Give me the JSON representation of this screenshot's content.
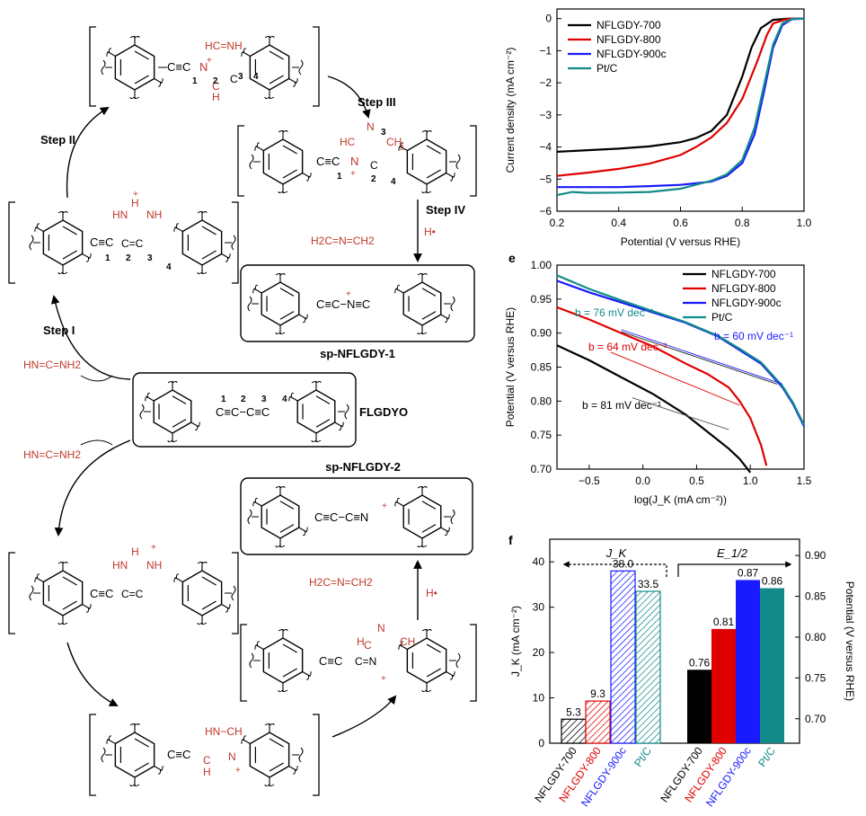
{
  "scheme": {
    "steps": [
      "Step I",
      "Step II",
      "Step III",
      "Step IV"
    ],
    "center_label": "FLGDYO",
    "product1_label": "sp-NFLGDY-1",
    "product2_label": "sp-NFLGDY-2",
    "reagent": "HN=C=NH2",
    "byproduct": "H2C=N=CH2",
    "h_radical": "H•",
    "ring_labels": [
      "HC=NH",
      "HN",
      "NH",
      "C=H",
      "N",
      "C",
      "CH2",
      "H"
    ],
    "numbers": [
      "1",
      "2",
      "3",
      "4"
    ]
  },
  "chart_data": [
    {
      "type": "line",
      "xlabel": "Potential (V versus RHE)",
      "ylabel": "Current density (mA cm⁻²)",
      "xlim": [
        0.2,
        1.0
      ],
      "ylim": [
        -6,
        0.3
      ],
      "xticks": [
        "0.2",
        "0.4",
        "0.6",
        "0.8",
        "1.0"
      ],
      "yticks": [
        "0",
        "−1",
        "−2",
        "−3",
        "−4",
        "−5",
        "−6"
      ],
      "legend_position": "top-left",
      "series": [
        {
          "name": "NFLGDY-700",
          "color": "#000000",
          "x": [
            0.2,
            0.3,
            0.4,
            0.5,
            0.6,
            0.65,
            0.7,
            0.75,
            0.8,
            0.83,
            0.86,
            0.9,
            0.95,
            1.0
          ],
          "y": [
            -4.15,
            -4.1,
            -4.05,
            -3.98,
            -3.85,
            -3.72,
            -3.5,
            -3.0,
            -1.8,
            -0.9,
            -0.3,
            -0.04,
            0,
            0
          ]
        },
        {
          "name": "NFLGDY-800",
          "color": "#e00000",
          "x": [
            0.2,
            0.3,
            0.4,
            0.5,
            0.6,
            0.65,
            0.7,
            0.75,
            0.8,
            0.85,
            0.88,
            0.9,
            0.95,
            1.0
          ],
          "y": [
            -4.9,
            -4.8,
            -4.68,
            -4.52,
            -4.25,
            -4.0,
            -3.7,
            -3.25,
            -2.5,
            -1.3,
            -0.5,
            -0.15,
            0,
            0
          ]
        },
        {
          "name": "NFLGDY-900c",
          "color": "#1a1aff",
          "x": [
            0.2,
            0.3,
            0.4,
            0.5,
            0.6,
            0.7,
            0.75,
            0.8,
            0.84,
            0.87,
            0.9,
            0.93,
            0.96,
            1.0
          ],
          "y": [
            -5.25,
            -5.25,
            -5.25,
            -5.22,
            -5.18,
            -5.08,
            -4.9,
            -4.5,
            -3.6,
            -2.3,
            -0.9,
            -0.2,
            -0.02,
            0
          ]
        },
        {
          "name": "Pt/C",
          "color": "#138a8a",
          "x": [
            0.2,
            0.25,
            0.3,
            0.4,
            0.5,
            0.6,
            0.7,
            0.75,
            0.8,
            0.84,
            0.87,
            0.9,
            0.93,
            0.96,
            1.0
          ],
          "y": [
            -5.5,
            -5.4,
            -5.43,
            -5.42,
            -5.4,
            -5.3,
            -5.05,
            -4.85,
            -4.4,
            -3.4,
            -2.1,
            -0.8,
            -0.15,
            -0.01,
            0
          ]
        }
      ]
    },
    {
      "type": "line",
      "panel_label": "e",
      "xlabel": "log(J_K (mA cm⁻²))",
      "ylabel": "Potential (V versus RHE)",
      "xlim": [
        -0.8,
        1.5
      ],
      "ylim": [
        0.7,
        1.0
      ],
      "xticks": [
        "−0.5",
        "0.0",
        "0.5",
        "1.0",
        "1.5"
      ],
      "yticks": [
        "0.70",
        "0.75",
        "0.80",
        "0.85",
        "0.90",
        "0.95",
        "1.00"
      ],
      "legend_position": "top-right",
      "series": [
        {
          "name": "NFLGDY-700",
          "color": "#000000",
          "x": [
            -0.8,
            -0.5,
            -0.2,
            0.1,
            0.4,
            0.6,
            0.8,
            0.9,
            1.0
          ],
          "y": [
            0.882,
            0.86,
            0.835,
            0.81,
            0.78,
            0.755,
            0.73,
            0.715,
            0.695
          ]
        },
        {
          "name": "NFLGDY-800",
          "color": "#e00000",
          "x": [
            -0.8,
            -0.5,
            -0.2,
            0.1,
            0.4,
            0.6,
            0.8,
            0.9,
            1.0,
            1.1,
            1.15
          ],
          "y": [
            0.938,
            0.92,
            0.9,
            0.88,
            0.855,
            0.84,
            0.82,
            0.8,
            0.775,
            0.735,
            0.705
          ]
        },
        {
          "name": "NFLGDY-900c",
          "color": "#1a1aff",
          "x": [
            -0.8,
            -0.5,
            -0.2,
            0.1,
            0.4,
            0.7,
            0.9,
            1.1,
            1.3,
            1.4,
            1.5
          ],
          "y": [
            0.977,
            0.96,
            0.945,
            0.93,
            0.915,
            0.895,
            0.875,
            0.855,
            0.82,
            0.795,
            0.763
          ]
        },
        {
          "name": "Pt/C",
          "color": "#138a8a",
          "x": [
            -0.8,
            -0.5,
            -0.2,
            0.1,
            0.4,
            0.7,
            0.9,
            1.1,
            1.3,
            1.4,
            1.5
          ],
          "y": [
            0.985,
            0.965,
            0.948,
            0.932,
            0.916,
            0.896,
            0.877,
            0.857,
            0.822,
            0.797,
            0.765
          ]
        }
      ],
      "annotations": [
        {
          "text": "b = 76 mV dec⁻¹",
          "color": "#138a8a"
        },
        {
          "text": "b = 60 mV dec⁻¹",
          "color": "#1a1aff"
        },
        {
          "text": "b = 64 mV dec⁻¹",
          "color": "#e00000"
        },
        {
          "text": "b = 81 mV dec⁻¹",
          "color": "#000000"
        }
      ]
    },
    {
      "type": "bar",
      "panel_label": "f",
      "left_ylabel": "J_K (mA cm⁻²)",
      "right_ylabel": "Potential (V versus RHE)",
      "left_ylim": [
        0,
        45
      ],
      "right_ylim": [
        0.67,
        0.92
      ],
      "left_yticks": [
        "0",
        "10",
        "20",
        "30",
        "40"
      ],
      "right_yticks": [
        "0.70",
        "0.75",
        "0.80",
        "0.85",
        "0.90"
      ],
      "group_labels": [
        "J_K",
        "E_1/2"
      ],
      "categories": [
        "NFLGDY-700",
        "NFLGDY-800",
        "NFLGDY-900c",
        "Pt/C"
      ],
      "colors": [
        "#000000",
        "#e00000",
        "#1a1aff",
        "#138a8a"
      ],
      "jk_values": [
        5.3,
        9.3,
        38.0,
        33.5
      ],
      "jk_labels": [
        "5.3",
        "9.3",
        "38.0",
        "33.5"
      ],
      "e12_values": [
        0.76,
        0.81,
        0.87,
        0.86
      ],
      "e12_labels": [
        "0.76",
        "0.81",
        "0.87",
        "0.86"
      ]
    }
  ]
}
